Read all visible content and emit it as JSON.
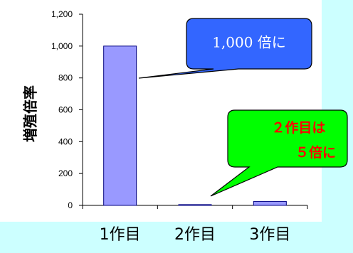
{
  "chart_data": {
    "type": "bar",
    "title": "",
    "xlabel": "",
    "ylabel": "増殖倍率",
    "categories": [
      "1作目",
      "2作目",
      "3作目"
    ],
    "values": [
      1000,
      5,
      25
    ],
    "ylim": [
      0,
      1200
    ],
    "yticks": [
      "0",
      "200",
      "400",
      "600",
      "800",
      "1,000",
      "1,200"
    ],
    "bar_color": "#9999ff",
    "grid": false,
    "annotations": [
      {
        "text": "1,000 倍に",
        "target_category": "1作目",
        "fill": "#3366ff",
        "text_color": "#ffffff"
      },
      {
        "lines": [
          "２作目は",
          "５倍に"
        ],
        "target_category": "2作目",
        "fill": "#00ff00",
        "text_color": "#ff0000"
      }
    ]
  }
}
